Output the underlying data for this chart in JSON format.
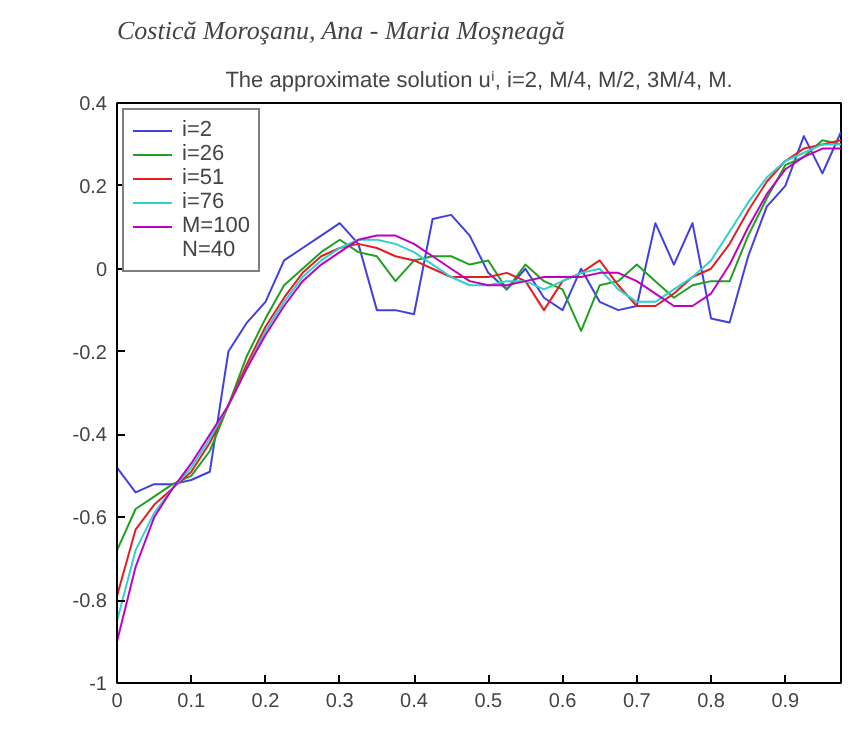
{
  "chart_data": {
    "type": "line",
    "title": "The approximate solution uⁱ, i=2, M/4, M/2, 3M/4, M.",
    "annotations": [
      "Costică Moroşanu, Ana - Maria Moşneagă",
      "N=40"
    ],
    "x": [
      0,
      0.025,
      0.05,
      0.075,
      0.1,
      0.125,
      0.15,
      0.175,
      0.2,
      0.225,
      0.25,
      0.275,
      0.3,
      0.325,
      0.35,
      0.375,
      0.4,
      0.425,
      0.45,
      0.475,
      0.5,
      0.525,
      0.55,
      0.575,
      0.6,
      0.625,
      0.65,
      0.675,
      0.7,
      0.725,
      0.75,
      0.775,
      0.8,
      0.825,
      0.85,
      0.875,
      0.9,
      0.925,
      0.95,
      0.975
    ],
    "series": [
      {
        "name": "i=2",
        "color": "#4040e0",
        "values": [
          -0.48,
          -0.54,
          -0.52,
          -0.52,
          -0.51,
          -0.49,
          -0.2,
          -0.13,
          -0.08,
          0.02,
          0.05,
          0.08,
          0.11,
          0.06,
          -0.1,
          -0.1,
          -0.11,
          0.12,
          0.13,
          0.08,
          -0.01,
          -0.05,
          0.0,
          -0.07,
          -0.1,
          0.0,
          -0.08,
          -0.1,
          -0.09,
          0.11,
          0.01,
          0.11,
          -0.12,
          -0.13,
          0.03,
          0.15,
          0.2,
          0.32,
          0.23,
          0.33
        ]
      },
      {
        "name": "i=26",
        "color": "#20a020",
        "values": [
          -0.68,
          -0.58,
          -0.55,
          -0.52,
          -0.5,
          -0.44,
          -0.33,
          -0.21,
          -0.12,
          -0.04,
          0.0,
          0.04,
          0.07,
          0.04,
          0.03,
          -0.03,
          0.02,
          0.03,
          0.03,
          0.01,
          0.02,
          -0.05,
          0.01,
          -0.03,
          -0.05,
          -0.15,
          -0.04,
          -0.03,
          0.01,
          -0.03,
          -0.07,
          -0.04,
          -0.03,
          -0.03,
          0.08,
          0.17,
          0.25,
          0.27,
          0.31,
          0.3
        ]
      },
      {
        "name": "i=51",
        "color": "#e02020",
        "values": [
          -0.79,
          -0.63,
          -0.57,
          -0.53,
          -0.49,
          -0.42,
          -0.33,
          -0.23,
          -0.14,
          -0.07,
          -0.01,
          0.03,
          0.05,
          0.06,
          0.05,
          0.03,
          0.02,
          0.0,
          -0.02,
          -0.02,
          -0.02,
          -0.01,
          -0.03,
          -0.1,
          -0.03,
          -0.01,
          0.02,
          -0.04,
          -0.09,
          -0.09,
          -0.06,
          -0.02,
          0.0,
          0.06,
          0.14,
          0.21,
          0.26,
          0.29,
          0.3,
          0.31
        ]
      },
      {
        "name": "i=76",
        "color": "#30d0d0",
        "values": [
          -0.85,
          -0.68,
          -0.59,
          -0.53,
          -0.48,
          -0.41,
          -0.33,
          -0.24,
          -0.15,
          -0.08,
          -0.02,
          0.02,
          0.05,
          0.07,
          0.07,
          0.06,
          0.04,
          0.01,
          -0.02,
          -0.04,
          -0.04,
          -0.03,
          -0.03,
          -0.05,
          -0.03,
          -0.01,
          0.0,
          -0.05,
          -0.08,
          -0.08,
          -0.05,
          -0.02,
          0.02,
          0.09,
          0.16,
          0.22,
          0.26,
          0.28,
          0.3,
          0.3
        ]
      },
      {
        "name": "M=100",
        "color": "#c000c0",
        "values": [
          -0.9,
          -0.72,
          -0.6,
          -0.53,
          -0.47,
          -0.4,
          -0.33,
          -0.24,
          -0.16,
          -0.09,
          -0.03,
          0.01,
          0.04,
          0.07,
          0.08,
          0.08,
          0.06,
          0.03,
          0.0,
          -0.03,
          -0.04,
          -0.04,
          -0.03,
          -0.02,
          -0.02,
          -0.02,
          -0.01,
          -0.01,
          -0.03,
          -0.06,
          -0.09,
          -0.09,
          -0.06,
          0.01,
          0.1,
          0.18,
          0.24,
          0.27,
          0.29,
          0.29
        ]
      }
    ],
    "xlim": [
      0,
      0.975
    ],
    "xticks": [
      0,
      0.1,
      0.2,
      0.3,
      0.4,
      0.5,
      0.6,
      0.7,
      0.8,
      0.9
    ],
    "ylim": [
      -1,
      0.4
    ],
    "yticks": [
      -1,
      -0.8,
      -0.6,
      -0.4,
      -0.2,
      0,
      0.2,
      0.4
    ],
    "grid": false,
    "legend": "top left",
    "marker": "none",
    "line_style": "solid"
  }
}
